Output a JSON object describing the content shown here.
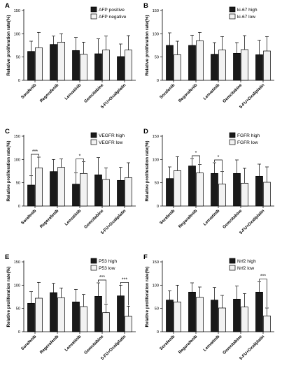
{
  "colors": {
    "series1": "#1a1a1a",
    "series2": "#f2f2f2",
    "axis": "#000000"
  },
  "chart_data": [
    {
      "type": "bar",
      "panel_label": "A",
      "ylabel": "Relative proliferation rate(%)",
      "ylim": [
        0,
        150
      ],
      "yticks": [
        0,
        50,
        100,
        150
      ],
      "categories": [
        "Sorafenib",
        "Regorafenib",
        "Lenvatinib",
        "Gemcitabine",
        "5-FU+Oxaliplatin"
      ],
      "series": [
        {
          "name": "AFP positive",
          "values": [
            62,
            77,
            64,
            57,
            51
          ],
          "errors": [
            22,
            18,
            28,
            32,
            27
          ]
        },
        {
          "name": "AFP negative",
          "values": [
            70,
            82,
            56,
            65,
            65
          ],
          "errors": [
            33,
            18,
            26,
            30,
            31
          ]
        }
      ],
      "significance": []
    },
    {
      "type": "bar",
      "panel_label": "B",
      "ylabel": "Relative proliferation rate(%)",
      "ylim": [
        0,
        150
      ],
      "yticks": [
        0,
        50,
        100,
        150
      ],
      "categories": [
        "Sorafenib",
        "Regorafenib",
        "Lenvatinib",
        "Gemcitabine",
        "5-FU+Oxaliplatin"
      ],
      "series": [
        {
          "name": "ki-67 high",
          "values": [
            75,
            75,
            56,
            58,
            55
          ],
          "errors": [
            27,
            22,
            25,
            23,
            31
          ]
        },
        {
          "name": "ki-67 low",
          "values": [
            55,
            85,
            65,
            66,
            63
          ],
          "errors": [
            29,
            18,
            29,
            30,
            31
          ]
        }
      ],
      "significance": []
    },
    {
      "type": "bar",
      "panel_label": "C",
      "ylabel": "Relative proliferation rate(%)",
      "ylim": [
        0,
        150
      ],
      "yticks": [
        0,
        50,
        100,
        150
      ],
      "categories": [
        "Sorafenib",
        "Regorafenib",
        "Lenvatinib",
        "Gemcitabine",
        "5-FU+Oxaliplatin"
      ],
      "series": [
        {
          "name": "VEGFR high",
          "values": [
            45,
            74,
            47,
            67,
            55
          ],
          "errors": [
            20,
            26,
            24,
            37,
            28
          ]
        },
        {
          "name": "VEGFR low",
          "values": [
            82,
            83,
            70,
            57,
            61
          ],
          "errors": [
            23,
            18,
            25,
            25,
            32
          ]
        }
      ],
      "significance": [
        {
          "category": 0,
          "label": "***"
        },
        {
          "category": 2,
          "label": "*"
        }
      ]
    },
    {
      "type": "bar",
      "panel_label": "D",
      "ylabel": "Relative proliferation rate(%)",
      "ylim": [
        0,
        150
      ],
      "yticks": [
        0,
        50,
        100,
        150
      ],
      "categories": [
        "Sorafenib",
        "Regorafenib",
        "Lenvatinib",
        "Gemcitabine",
        "5-FU+Oxaliplatin"
      ],
      "series": [
        {
          "name": "FGFR high",
          "values": [
            59,
            86,
            70,
            70,
            64
          ],
          "errors": [
            25,
            16,
            23,
            29,
            26
          ]
        },
        {
          "name": "FGFR low",
          "values": [
            76,
            71,
            47,
            49,
            51
          ],
          "errors": [
            30,
            18,
            27,
            32,
            33
          ]
        }
      ],
      "significance": [
        {
          "category": 1,
          "label": "*"
        },
        {
          "category": 2,
          "label": "*"
        }
      ]
    },
    {
      "type": "bar",
      "panel_label": "E",
      "ylabel": "Relative proliferation rate(%)",
      "ylim": [
        0,
        150
      ],
      "yticks": [
        0,
        50,
        100,
        150
      ],
      "categories": [
        "Sorafenib",
        "Regorafenib",
        "Lenvatinib",
        "Gemcitabine",
        "5-FU+Oxaliplatin"
      ],
      "series": [
        {
          "name": "P53 high",
          "values": [
            61,
            84,
            64,
            76,
            77
          ],
          "errors": [
            25,
            20,
            27,
            29,
            23
          ]
        },
        {
          "name": "P53 low",
          "values": [
            72,
            73,
            54,
            41,
            33
          ],
          "errors": [
            34,
            21,
            26,
            18,
            22
          ]
        }
      ],
      "significance": [
        {
          "category": 3,
          "label": "***"
        },
        {
          "category": 4,
          "label": "***"
        }
      ]
    },
    {
      "type": "bar",
      "panel_label": "F",
      "ylabel": "Relative proliferation rate(%)",
      "ylim": [
        0,
        150
      ],
      "yticks": [
        0,
        50,
        100,
        150
      ],
      "categories": [
        "Sorafenib",
        "Regorafenib",
        "Lenvatinib",
        "Gemcitabine",
        "5-FU+Oxaliplatin"
      ],
      "series": [
        {
          "name": "Nrf2 high",
          "values": [
            68,
            85,
            68,
            70,
            85
          ],
          "errors": [
            20,
            20,
            27,
            28,
            22
          ]
        },
        {
          "name": "Nrf2 low",
          "values": [
            64,
            74,
            51,
            53,
            34
          ],
          "errors": [
            36,
            22,
            27,
            29,
            17
          ]
        }
      ],
      "significance": [
        {
          "category": 4,
          "label": "***"
        }
      ]
    }
  ]
}
